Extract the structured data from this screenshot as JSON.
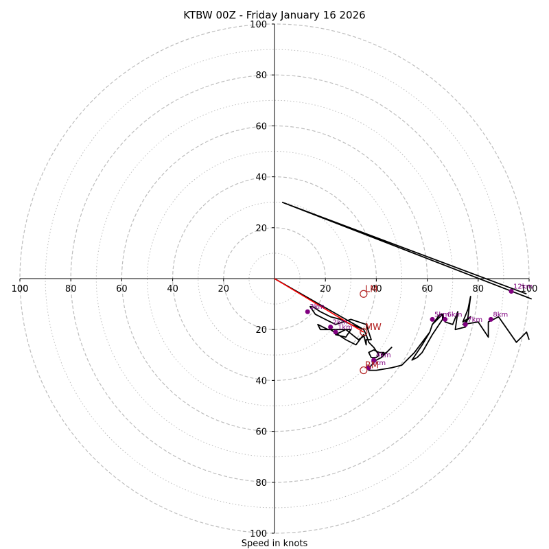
{
  "chart_data": {
    "type": "hodograph",
    "title": "KTBW 00Z - Friday January 16 2026",
    "xlabel": "Speed in knots",
    "ylabel": "",
    "xlim": [
      -100,
      100
    ],
    "ylim": [
      -100,
      100
    ],
    "tick_values": [
      100,
      80,
      60,
      40,
      20,
      0,
      20,
      40,
      60,
      80,
      100
    ],
    "tick_labels": [
      "100",
      "80",
      "60",
      "40",
      "20",
      "20",
      "40",
      "60",
      "80",
      "100"
    ],
    "ring_radii_major": [
      20,
      40,
      60,
      80,
      100
    ],
    "ring_radii_minor": [
      10,
      30,
      50,
      70,
      90
    ],
    "colors": {
      "hodograph_line": "#000000",
      "height_markers": "#800080",
      "storm_motion": "#b22222",
      "shear_vector": "#ff0000",
      "grid": "#bdbdbd",
      "axes": "#000000"
    },
    "hodograph_trace": [
      [
        0,
        0
      ],
      [
        35,
        -20
      ],
      [
        36,
        -22
      ],
      [
        33,
        -24
      ],
      [
        28,
        -20
      ],
      [
        24,
        -22
      ],
      [
        28,
        -23
      ],
      [
        30,
        -20
      ],
      [
        21,
        -20
      ],
      [
        17,
        -18
      ],
      [
        18,
        -20
      ],
      [
        22,
        -20
      ],
      [
        28,
        -24
      ],
      [
        32,
        -26
      ],
      [
        35,
        -22
      ],
      [
        36,
        -26
      ],
      [
        36,
        -24
      ],
      [
        38,
        -24
      ],
      [
        36,
        -18
      ],
      [
        30,
        -16
      ],
      [
        24,
        -18
      ],
      [
        20,
        -16
      ],
      [
        16,
        -14
      ],
      [
        14,
        -11
      ],
      [
        15,
        -11
      ],
      [
        18,
        -13
      ],
      [
        22,
        -15
      ],
      [
        26,
        -16
      ],
      [
        30,
        -18
      ],
      [
        35,
        -20
      ],
      [
        36,
        -22
      ],
      [
        37,
        -25
      ],
      [
        39,
        -27
      ],
      [
        41,
        -30
      ],
      [
        40,
        -31
      ],
      [
        38,
        -31
      ],
      [
        37,
        -29
      ],
      [
        39,
        -28
      ],
      [
        41,
        -29
      ],
      [
        43,
        -29
      ],
      [
        42,
        -30
      ],
      [
        44,
        -29
      ],
      [
        46,
        -27
      ],
      [
        44,
        -29
      ],
      [
        42,
        -31
      ],
      [
        40,
        -32
      ],
      [
        39,
        -33
      ],
      [
        38,
        -34
      ],
      [
        37,
        -36
      ],
      [
        40,
        -36
      ],
      [
        46,
        -35
      ],
      [
        50,
        -34
      ],
      [
        55,
        -29
      ],
      [
        61,
        -21
      ],
      [
        62,
        -18
      ],
      [
        65,
        -14
      ],
      [
        66,
        -14
      ],
      [
        66,
        -16
      ],
      [
        62,
        -22
      ],
      [
        58,
        -29
      ],
      [
        56,
        -31
      ],
      [
        54,
        -32
      ],
      [
        58,
        -26
      ],
      [
        61,
        -21
      ],
      [
        62,
        -18
      ],
      [
        66,
        -14
      ],
      [
        67,
        -17
      ],
      [
        70,
        -18
      ],
      [
        72,
        -13
      ],
      [
        71,
        -20
      ],
      [
        75,
        -19
      ],
      [
        76,
        -15
      ],
      [
        77,
        -7
      ],
      [
        76,
        -12
      ],
      [
        74,
        -17
      ],
      [
        77,
        -15
      ],
      [
        74,
        -18
      ],
      [
        80,
        -17
      ],
      [
        84,
        -23
      ],
      [
        84,
        -17
      ],
      [
        86,
        -16
      ],
      [
        88,
        -15
      ],
      [
        95,
        -25
      ],
      [
        99,
        -21
      ],
      [
        100,
        -24
      ]
    ],
    "upper_trace": [
      [
        101,
        -8
      ],
      [
        3,
        30
      ],
      [
        99,
        -6
      ]
    ],
    "height_markers": [
      {
        "label": "1km",
        "u": 24,
        "v": -21
      },
      {
        "label": "2km",
        "u": 22,
        "v": -19
      },
      {
        "label": "3km",
        "u": 13,
        "v": -13
      },
      {
        "label": "4km",
        "u": 39,
        "v": -32
      },
      {
        "label": "5km",
        "u": 37,
        "v": -35
      },
      {
        "label": "5km",
        "u": 62,
        "v": -16
      },
      {
        "label": "6km",
        "u": 67,
        "v": -16
      },
      {
        "label": "7km",
        "u": 75,
        "v": -18
      },
      {
        "label": "8km",
        "u": 85,
        "v": -16
      },
      {
        "label": "12km",
        "u": 93,
        "v": -5
      }
    ],
    "storm_motions": [
      {
        "label": "LM",
        "u": 35,
        "v": -6
      },
      {
        "label": "MW",
        "u": 35,
        "v": -21
      },
      {
        "label": "RM",
        "u": 35,
        "v": -36
      }
    ],
    "shear_vector": {
      "from": [
        0,
        0
      ],
      "to": [
        35,
        -21
      ]
    }
  }
}
